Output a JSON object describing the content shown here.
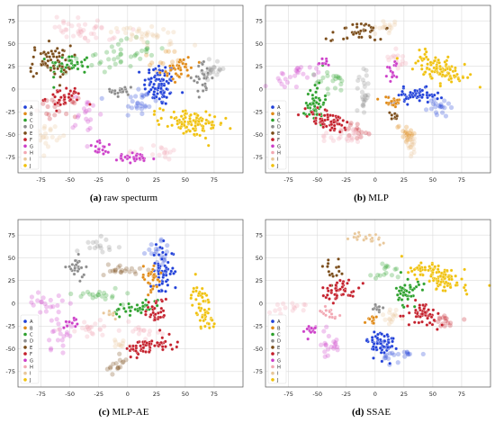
{
  "chart_data": [
    {
      "type": "scatter",
      "caption_letter": "(a)",
      "caption_text": "raw specturm",
      "xlim": [
        -95,
        100
      ],
      "ylim": [
        -92,
        92
      ],
      "xticks": [
        -75,
        -50,
        -25,
        0,
        25,
        50,
        75
      ],
      "yticks": [
        -75,
        -50,
        -25,
        0,
        25,
        50,
        75
      ],
      "grid": true,
      "legend_position": "bottom-left",
      "clusters": [
        {
          "label": "A",
          "x": 28,
          "y": 5,
          "sx": 7,
          "sy": 12,
          "n": 90,
          "angle": 0,
          "faded": false
        },
        {
          "label": "A",
          "x": 10,
          "y": -15,
          "sx": 8,
          "sy": 10,
          "n": 25,
          "angle": 0,
          "faded": true
        },
        {
          "label": "B",
          "x": 45,
          "y": 22,
          "sx": 8,
          "sy": 7,
          "n": 40,
          "angle": 20,
          "faded": false
        },
        {
          "label": "B",
          "x": 30,
          "y": 30,
          "sx": 10,
          "sy": 8,
          "n": 15,
          "angle": 0,
          "faded": true
        },
        {
          "label": "C",
          "x": -50,
          "y": 27,
          "sx": 9,
          "sy": 6,
          "n": 50,
          "angle": 0,
          "faded": false
        },
        {
          "label": "C",
          "x": -12,
          "y": 35,
          "sx": 18,
          "sy": 7,
          "n": 40,
          "angle": 15,
          "faded": true
        },
        {
          "label": "D",
          "x": -5,
          "y": -2,
          "sx": 5,
          "sy": 4,
          "n": 25,
          "angle": 0,
          "faded": false
        },
        {
          "label": "D",
          "x": 65,
          "y": 12,
          "sx": 4,
          "sy": 9,
          "n": 30,
          "angle": 0,
          "faded": false
        },
        {
          "label": "D",
          "x": 75,
          "y": 22,
          "sx": 5,
          "sy": 6,
          "n": 20,
          "angle": 0,
          "faded": true
        },
        {
          "label": "E",
          "x": -67,
          "y": 30,
          "sx": 9,
          "sy": 9,
          "n": 60,
          "angle": 0,
          "faded": false
        },
        {
          "label": "F",
          "x": -55,
          "y": -10,
          "sx": 8,
          "sy": 6,
          "n": 40,
          "angle": 0,
          "faded": false
        },
        {
          "label": "F",
          "x": -60,
          "y": -20,
          "sx": 8,
          "sy": 5,
          "n": 20,
          "angle": 0,
          "faded": true
        },
        {
          "label": "G",
          "x": -22,
          "y": -65,
          "sx": 6,
          "sy": 4,
          "n": 20,
          "angle": 0,
          "faded": false
        },
        {
          "label": "G",
          "x": 5,
          "y": -76,
          "sx": 10,
          "sy": 3,
          "n": 30,
          "angle": 0,
          "faded": false
        },
        {
          "label": "G",
          "x": -35,
          "y": -30,
          "sx": 6,
          "sy": 12,
          "n": 20,
          "angle": 0,
          "faded": true
        },
        {
          "label": "H",
          "x": -38,
          "y": 65,
          "sx": 14,
          "sy": 6,
          "n": 40,
          "angle": -10,
          "faded": true
        },
        {
          "label": "H",
          "x": 20,
          "y": -70,
          "sx": 12,
          "sy": 4,
          "n": 20,
          "angle": 0,
          "faded": true
        },
        {
          "label": "I",
          "x": 18,
          "y": 60,
          "sx": 14,
          "sy": 6,
          "n": 35,
          "angle": -15,
          "faded": true
        },
        {
          "label": "I",
          "x": -70,
          "y": -50,
          "sx": 5,
          "sy": 6,
          "n": 20,
          "angle": 0,
          "faded": true
        },
        {
          "label": "J",
          "x": 55,
          "y": -38,
          "sx": 14,
          "sy": 7,
          "n": 100,
          "angle": -10,
          "faded": false
        }
      ]
    },
    {
      "type": "scatter",
      "caption_letter": "(b)",
      "caption_text": "MLP",
      "xlim": [
        -95,
        100
      ],
      "ylim": [
        -92,
        92
      ],
      "xticks": [
        -75,
        -50,
        -25,
        0,
        25,
        50,
        75
      ],
      "yticks": [
        -75,
        -50,
        -25,
        0,
        25,
        50,
        75
      ],
      "grid": true,
      "legend_position": "bottom-left",
      "clusters": [
        {
          "label": "A",
          "x": 35,
          "y": -7,
          "sx": 10,
          "sy": 4,
          "n": 60,
          "angle": 0,
          "faded": false
        },
        {
          "label": "A",
          "x": 55,
          "y": -20,
          "sx": 5,
          "sy": 6,
          "n": 20,
          "angle": 0,
          "faded": true
        },
        {
          "label": "B",
          "x": 15,
          "y": -14,
          "sx": 5,
          "sy": 3,
          "n": 20,
          "angle": 0,
          "faded": false
        },
        {
          "label": "B",
          "x": 27,
          "y": -48,
          "sx": 4,
          "sy": 6,
          "n": 20,
          "angle": 0,
          "faded": true
        },
        {
          "label": "C",
          "x": -52,
          "y": -15,
          "sx": 4,
          "sy": 12,
          "n": 50,
          "angle": 0,
          "faded": false
        },
        {
          "label": "C",
          "x": -35,
          "y": 8,
          "sx": 8,
          "sy": 6,
          "n": 20,
          "angle": 0,
          "faded": true
        },
        {
          "label": "D",
          "x": -10,
          "y": 0,
          "sx": 3,
          "sy": 15,
          "n": 25,
          "angle": 0,
          "faded": true
        },
        {
          "label": "E",
          "x": -12,
          "y": 62,
          "sx": 10,
          "sy": 6,
          "n": 40,
          "angle": 15,
          "faded": false
        },
        {
          "label": "E",
          "x": 15,
          "y": -30,
          "sx": 3,
          "sy": 3,
          "n": 10,
          "angle": 0,
          "faded": false
        },
        {
          "label": "F",
          "x": -40,
          "y": -35,
          "sx": 12,
          "sy": 5,
          "n": 60,
          "angle": -20,
          "faded": false
        },
        {
          "label": "F",
          "x": -15,
          "y": -45,
          "sx": 6,
          "sy": 5,
          "n": 15,
          "angle": 0,
          "faded": true
        },
        {
          "label": "G",
          "x": -45,
          "y": 30,
          "sx": 4,
          "sy": 3,
          "n": 10,
          "angle": 0,
          "faded": false
        },
        {
          "label": "G",
          "x": -65,
          "y": 15,
          "sx": 12,
          "sy": 5,
          "n": 25,
          "angle": 20,
          "faded": true
        },
        {
          "label": "G",
          "x": 15,
          "y": 20,
          "sx": 3,
          "sy": 6,
          "n": 15,
          "angle": 0,
          "faded": false
        },
        {
          "label": "H",
          "x": -25,
          "y": -50,
          "sx": 12,
          "sy": 5,
          "n": 25,
          "angle": 0,
          "faded": true
        },
        {
          "label": "H",
          "x": 20,
          "y": 35,
          "sx": 4,
          "sy": 6,
          "n": 15,
          "angle": 0,
          "faded": true
        },
        {
          "label": "I",
          "x": 10,
          "y": 68,
          "sx": 5,
          "sy": 3,
          "n": 15,
          "angle": 0,
          "faded": true
        },
        {
          "label": "I",
          "x": 30,
          "y": -60,
          "sx": 4,
          "sy": 6,
          "n": 15,
          "angle": 0,
          "faded": true
        },
        {
          "label": "J",
          "x": 58,
          "y": 22,
          "sx": 12,
          "sy": 6,
          "n": 110,
          "angle": -35,
          "faded": false
        }
      ]
    },
    {
      "type": "scatter",
      "caption_letter": "(c)",
      "caption_text": "MLP-AE",
      "xlim": [
        -95,
        100
      ],
      "ylim": [
        -92,
        92
      ],
      "xticks": [
        -75,
        -50,
        -25,
        0,
        25,
        50,
        75
      ],
      "yticks": [
        -75,
        -50,
        -25,
        0,
        25,
        50,
        75
      ],
      "grid": true,
      "legend_position": "bottom-left",
      "clusters": [
        {
          "label": "A",
          "x": 30,
          "y": 35,
          "sx": 5,
          "sy": 14,
          "n": 60,
          "angle": 0,
          "faded": false
        },
        {
          "label": "A",
          "x": 28,
          "y": 50,
          "sx": 6,
          "sy": 8,
          "n": 20,
          "angle": 0,
          "faded": true
        },
        {
          "label": "B",
          "x": 20,
          "y": 28,
          "sx": 5,
          "sy": 8,
          "n": 30,
          "angle": 0,
          "faded": false
        },
        {
          "label": "C",
          "x": 8,
          "y": -5,
          "sx": 12,
          "sy": 4,
          "n": 40,
          "angle": 10,
          "faded": false
        },
        {
          "label": "C",
          "x": -25,
          "y": 10,
          "sx": 10,
          "sy": 4,
          "n": 20,
          "angle": 0,
          "faded": true
        },
        {
          "label": "D",
          "x": -45,
          "y": 38,
          "sx": 4,
          "sy": 6,
          "n": 25,
          "angle": 0,
          "faded": false
        },
        {
          "label": "D",
          "x": -20,
          "y": 65,
          "sx": 8,
          "sy": 4,
          "n": 15,
          "angle": 0,
          "faded": true
        },
        {
          "label": "E",
          "x": -5,
          "y": 37,
          "sx": 8,
          "sy": 4,
          "n": 20,
          "angle": 0,
          "faded": true
        },
        {
          "label": "E",
          "x": -10,
          "y": -70,
          "sx": 5,
          "sy": 6,
          "n": 15,
          "angle": 0,
          "faded": true
        },
        {
          "label": "F",
          "x": 20,
          "y": -47,
          "sx": 12,
          "sy": 4,
          "n": 60,
          "angle": 10,
          "faded": false
        },
        {
          "label": "F",
          "x": 25,
          "y": -10,
          "sx": 5,
          "sy": 8,
          "n": 30,
          "angle": 0,
          "faded": false
        },
        {
          "label": "G",
          "x": -70,
          "y": 0,
          "sx": 8,
          "sy": 5,
          "n": 20,
          "angle": 0,
          "faded": true
        },
        {
          "label": "G",
          "x": -60,
          "y": -35,
          "sx": 6,
          "sy": 10,
          "n": 20,
          "angle": 0,
          "faded": true
        },
        {
          "label": "G",
          "x": -50,
          "y": -20,
          "sx": 3,
          "sy": 4,
          "n": 10,
          "angle": 0,
          "faded": false
        },
        {
          "label": "H",
          "x": -30,
          "y": -28,
          "sx": 10,
          "sy": 4,
          "n": 20,
          "angle": 0,
          "faded": true
        },
        {
          "label": "H",
          "x": 10,
          "y": -30,
          "sx": 8,
          "sy": 4,
          "n": 15,
          "angle": 0,
          "faded": true
        },
        {
          "label": "I",
          "x": -15,
          "y": -10,
          "sx": 3,
          "sy": 3,
          "n": 10,
          "angle": 0,
          "faded": false
        },
        {
          "label": "I",
          "x": -5,
          "y": -45,
          "sx": 4,
          "sy": 3,
          "n": 10,
          "angle": 0,
          "faded": true
        },
        {
          "label": "J",
          "x": 65,
          "y": -5,
          "sx": 4,
          "sy": 13,
          "n": 60,
          "angle": 10,
          "faded": false
        }
      ]
    },
    {
      "type": "scatter",
      "caption_letter": "(d)",
      "caption_text": "SSAE",
      "xlim": [
        -95,
        100
      ],
      "ylim": [
        -92,
        92
      ],
      "xticks": [
        -75,
        -50,
        -25,
        0,
        25,
        50,
        75
      ],
      "yticks": [
        -75,
        -50,
        -25,
        0,
        25,
        50,
        75
      ],
      "grid": true,
      "legend_position": "bottom-left",
      "clusters": [
        {
          "label": "A",
          "x": 5,
          "y": -45,
          "sx": 6,
          "sy": 8,
          "n": 70,
          "angle": 0,
          "faded": false
        },
        {
          "label": "A",
          "x": 22,
          "y": -57,
          "sx": 8,
          "sy": 4,
          "n": 20,
          "angle": 0,
          "faded": true
        },
        {
          "label": "B",
          "x": -3,
          "y": -18,
          "sx": 3,
          "sy": 3,
          "n": 10,
          "angle": 0,
          "faded": false
        },
        {
          "label": "C",
          "x": 28,
          "y": 12,
          "sx": 5,
          "sy": 8,
          "n": 40,
          "angle": 0,
          "faded": false
        },
        {
          "label": "C",
          "x": 10,
          "y": 35,
          "sx": 6,
          "sy": 5,
          "n": 15,
          "angle": 0,
          "faded": true
        },
        {
          "label": "D",
          "x": 3,
          "y": -5,
          "sx": 3,
          "sy": 4,
          "n": 10,
          "angle": 0,
          "faded": false
        },
        {
          "label": "E",
          "x": -38,
          "y": 37,
          "sx": 4,
          "sy": 6,
          "n": 15,
          "angle": 0,
          "faded": false
        },
        {
          "label": "F",
          "x": -30,
          "y": 15,
          "sx": 8,
          "sy": 6,
          "n": 45,
          "angle": 0,
          "faded": false
        },
        {
          "label": "F",
          "x": 42,
          "y": -12,
          "sx": 10,
          "sy": 6,
          "n": 50,
          "angle": -25,
          "faded": false
        },
        {
          "label": "F",
          "x": 55,
          "y": -20,
          "sx": 8,
          "sy": 4,
          "n": 15,
          "angle": 0,
          "faded": true
        },
        {
          "label": "G",
          "x": -55,
          "y": -30,
          "sx": 6,
          "sy": 4,
          "n": 15,
          "angle": 0,
          "faded": false
        },
        {
          "label": "G",
          "x": -40,
          "y": -45,
          "sx": 5,
          "sy": 8,
          "n": 20,
          "angle": 0,
          "faded": true
        },
        {
          "label": "H",
          "x": -70,
          "y": -5,
          "sx": 8,
          "sy": 3,
          "n": 15,
          "angle": 0,
          "faded": true
        },
        {
          "label": "H",
          "x": -40,
          "y": -10,
          "sx": 5,
          "sy": 3,
          "n": 15,
          "angle": 0,
          "faded": false
        },
        {
          "label": "I",
          "x": -5,
          "y": 72,
          "sx": 8,
          "sy": 3,
          "n": 25,
          "angle": 0,
          "faded": false
        },
        {
          "label": "I",
          "x": 15,
          "y": -15,
          "sx": 5,
          "sy": 5,
          "n": 15,
          "angle": 0,
          "faded": true
        },
        {
          "label": "J",
          "x": 55,
          "y": 30,
          "sx": 12,
          "sy": 6,
          "n": 110,
          "angle": -30,
          "faded": false
        }
      ]
    }
  ],
  "legend": {
    "entries": [
      {
        "label": "A",
        "color": "#1f3fd8"
      },
      {
        "label": "B",
        "color": "#e08a17"
      },
      {
        "label": "C",
        "color": "#2ca02c"
      },
      {
        "label": "D",
        "color": "#8c8c8c"
      },
      {
        "label": "E",
        "color": "#7a4c19"
      },
      {
        "label": "F",
        "color": "#c41f2b"
      },
      {
        "label": "G",
        "color": "#cc3ec8"
      },
      {
        "label": "H",
        "color": "#f2a7b2"
      },
      {
        "label": "I",
        "color": "#e8c79a"
      },
      {
        "label": "J",
        "color": "#f0c10c"
      }
    ]
  }
}
